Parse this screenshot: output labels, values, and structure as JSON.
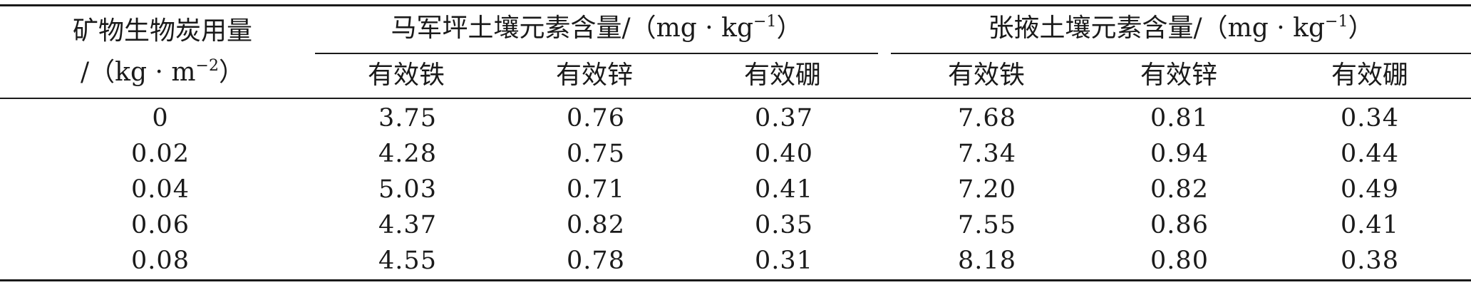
{
  "table": {
    "row_header": {
      "line1": "矿物生物炭用量",
      "line2_prefix": "/（kg · m",
      "line2_sup": "−2",
      "line2_suffix": "）"
    },
    "groups": [
      {
        "prefix": "马军坪土壤元素含量/（mg · kg",
        "sup": "−1",
        "suffix": "）"
      },
      {
        "prefix": "张掖土壤元素含量/（mg · kg",
        "sup": "−1",
        "suffix": "）"
      }
    ],
    "subheaders": [
      "有效铁",
      "有效锌",
      "有效硼",
      "有效铁",
      "有效锌",
      "有效硼"
    ],
    "rows": [
      [
        "0",
        "3.75",
        "0.76",
        "0.37",
        "7.68",
        "0.81",
        "0.34"
      ],
      [
        "0.02",
        "4.28",
        "0.75",
        "0.40",
        "7.34",
        "0.94",
        "0.44"
      ],
      [
        "0.04",
        "5.03",
        "0.71",
        "0.41",
        "7.20",
        "0.82",
        "0.49"
      ],
      [
        "0.06",
        "4.37",
        "0.82",
        "0.35",
        "7.55",
        "0.86",
        "0.41"
      ],
      [
        "0.08",
        "4.55",
        "0.78",
        "0.31",
        "8.18",
        "0.80",
        "0.38"
      ]
    ]
  }
}
